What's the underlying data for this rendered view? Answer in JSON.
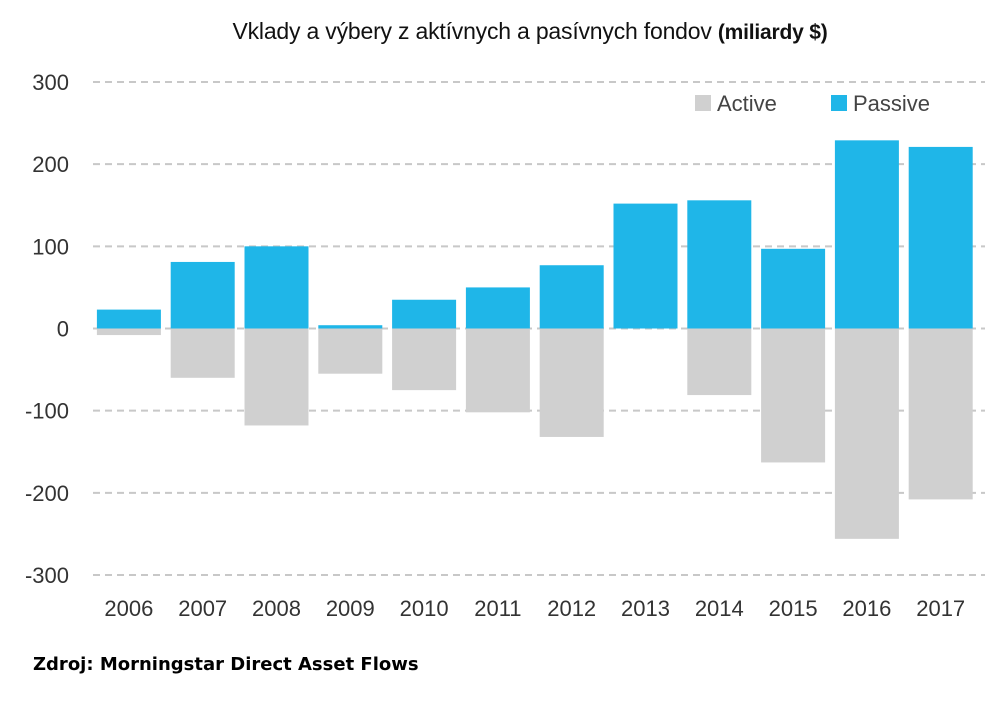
{
  "chart_data": {
    "type": "bar",
    "title": "Vklady a výbery z aktívnych a pasívnych fondov",
    "title_unit": "(miliardy $)",
    "categories": [
      "2006",
      "2007",
      "2008",
      "2009",
      "2010",
      "2011",
      "2012",
      "2013",
      "2014",
      "2015",
      "2016",
      "2017"
    ],
    "series": [
      {
        "name": "Active",
        "color": "#d0d0d0",
        "values": [
          -8,
          -60,
          -118,
          -55,
          -75,
          -102,
          -132,
          0,
          -81,
          -163,
          -256,
          -208
        ]
      },
      {
        "name": "Passive",
        "color": "#1fb6e8",
        "values": [
          23,
          81,
          100,
          4,
          35,
          50,
          77,
          152,
          156,
          97,
          229,
          221
        ]
      }
    ],
    "ylim": [
      -300,
      300
    ],
    "yticks": [
      "300",
      "200",
      "100",
      "0",
      "-100",
      "-200",
      "-300"
    ],
    "ytick_values": [
      300,
      200,
      100,
      0,
      -100,
      -200,
      -300
    ],
    "grid": true,
    "grid_color": "#c8c8c8",
    "legend_position": "top-right",
    "xlabel": "",
    "ylabel": ""
  },
  "source_note": "Zdroj: Morningstar Direct Asset Flows"
}
